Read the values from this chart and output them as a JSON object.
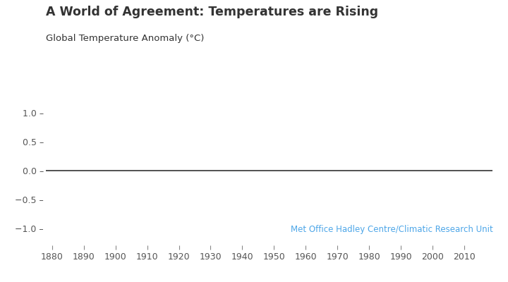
{
  "title": "A World of Agreement: Temperatures are Rising",
  "ylabel": "Global Temperature Anomaly (°C)",
  "attribution": "Met Office Hadley Centre/Climatic Research Unit",
  "attribution_color": "#4da6e8",
  "xlim": [
    1878,
    2019
  ],
  "ylim": [
    -1.3,
    1.25
  ],
  "yticks": [
    -1.0,
    -0.5,
    0.0,
    0.5,
    1.0
  ],
  "ytick_labels": [
    "−1.0 –",
    "−0.5 –",
    "0.0 –",
    "0.5 –",
    "1.0 –"
  ],
  "xticks": [
    1880,
    1890,
    1900,
    1910,
    1920,
    1930,
    1940,
    1950,
    1960,
    1970,
    1980,
    1990,
    2000,
    2010
  ],
  "line_y": 0.0,
  "line_color": "#333333",
  "background_color": "#ffffff",
  "title_fontsize": 12.5,
  "label_fontsize": 9.5,
  "tick_fontsize": 9,
  "attribution_fontsize": 8.5,
  "tick_color": "#555555",
  "text_color": "#333333"
}
